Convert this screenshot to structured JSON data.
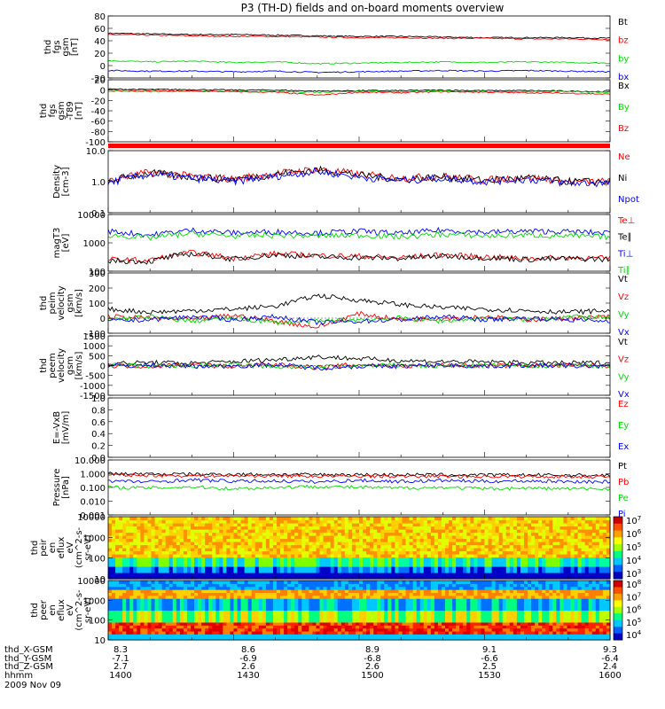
{
  "title": "P3 (TH-D) fields and on-board moments overview",
  "colors": {
    "black": "#000000",
    "red": "#ff0000",
    "green": "#00dd00",
    "blue": "#0000ff"
  },
  "chart_data": [
    {
      "type": "line",
      "id": "fgs",
      "ylabel_lines": [
        "thd",
        "fgs",
        "gsm",
        "[nT]"
      ],
      "ylim": [
        -20,
        80
      ],
      "yticks": [
        "80",
        "60",
        "40",
        "20",
        "0",
        "-20"
      ],
      "series": [
        {
          "name": "Bt",
          "color": "black",
          "values": [
            52,
            51,
            50,
            50,
            49,
            48,
            47,
            47,
            46,
            45,
            45,
            45,
            44
          ]
        },
        {
          "name": "bz",
          "color": "red",
          "values": [
            50,
            49,
            48,
            47,
            47,
            46,
            45,
            45,
            44,
            44,
            43,
            43,
            42
          ]
        },
        {
          "name": "by",
          "color": "green",
          "values": [
            8,
            6,
            7,
            5,
            6,
            3,
            4,
            5,
            6,
            5,
            6,
            5,
            4
          ]
        },
        {
          "name": "bx",
          "color": "blue",
          "values": [
            -8,
            -9,
            -9,
            -10,
            -9,
            -11,
            -10,
            -9,
            -8,
            -9,
            -8,
            -9,
            -10
          ]
        }
      ]
    },
    {
      "type": "line",
      "id": "fgs_t89",
      "ylabel_lines": [
        "thd",
        "fgs",
        "gsm",
        "-T89",
        "[nT]"
      ],
      "ylim": [
        -100,
        20
      ],
      "yticks": [
        "20",
        "0",
        "-20",
        "-40",
        "-60",
        "-80",
        "-100"
      ],
      "series": [
        {
          "name": "Bx",
          "color": "black",
          "values": [
            2,
            1,
            1,
            0,
            0,
            -2,
            -1,
            -1,
            0,
            -1,
            -1,
            -2,
            -3
          ]
        },
        {
          "name": "By",
          "color": "green",
          "values": [
            -2,
            -3,
            -2,
            -3,
            -3,
            -4,
            -2,
            -3,
            -2,
            -3,
            -3,
            -3,
            -4
          ]
        },
        {
          "name": "Bz",
          "color": "red",
          "values": [
            0,
            -1,
            -2,
            -3,
            -4,
            -10,
            -4,
            -5,
            -3,
            -4,
            -5,
            -6,
            -8
          ]
        }
      ]
    },
    {
      "type": "line",
      "id": "density",
      "ylabel_lines": [
        "Density",
        "[cm-3]"
      ],
      "scale": "log",
      "ylim": [
        0.1,
        10
      ],
      "yticks": [
        "10.0",
        "1.0",
        "0.1"
      ],
      "series": [
        {
          "name": "Ne",
          "color": "red",
          "values": [
            1.0,
            2.0,
            1.5,
            1.2,
            1.8,
            2.5,
            1.7,
            1.3,
            1.5,
            1.1,
            1.4,
            1.0,
            1.0
          ]
        },
        {
          "name": "Ni",
          "color": "black",
          "values": [
            1.0,
            1.9,
            1.4,
            1.2,
            1.7,
            2.4,
            1.6,
            1.2,
            1.4,
            1.1,
            1.3,
            1.0,
            1.0
          ]
        },
        {
          "name": "Npot",
          "color": "blue",
          "values": [
            0.9,
            1.7,
            1.3,
            1.0,
            1.5,
            2.1,
            1.4,
            1.1,
            1.3,
            1.0,
            1.2,
            0.9,
            0.9
          ]
        }
      ]
    },
    {
      "type": "line",
      "id": "mag",
      "ylabel_lines": [
        "magT3",
        "[eV]"
      ],
      "scale": "log",
      "ylim": [
        30,
        10000
      ],
      "yticks": [
        "10000",
        "1000",
        "100"
      ],
      "series": [
        {
          "name": "Te⊥",
          "color": "red",
          "values": [
            100,
            90,
            200,
            110,
            180,
            150,
            140,
            120,
            160,
            130,
            110,
            120,
            110
          ]
        },
        {
          "name": "Te∥",
          "color": "black",
          "values": [
            90,
            80,
            180,
            100,
            160,
            130,
            120,
            110,
            140,
            120,
            100,
            110,
            100
          ]
        },
        {
          "name": "Ti⊥",
          "color": "blue",
          "values": [
            1800,
            1200,
            2000,
            1500,
            1700,
            1500,
            1800,
            1400,
            2000,
            1600,
            1800,
            1700,
            1500
          ]
        },
        {
          "name": "Ti∥",
          "color": "green",
          "values": [
            1200,
            900,
            1400,
            1100,
            1200,
            1100,
            1200,
            1000,
            1300,
            1100,
            1200,
            1100,
            1000
          ]
        }
      ]
    },
    {
      "type": "line",
      "id": "peim",
      "ylabel_lines": [
        "thd",
        "peim",
        "velocity",
        "gsm",
        "[km/s]"
      ],
      "ylim": [
        -100,
        300
      ],
      "yticks": [
        "300",
        "200",
        "100",
        "0",
        "-100"
      ],
      "series": [
        {
          "name": "Vt",
          "color": "black",
          "values": [
            60,
            40,
            50,
            60,
            80,
            150,
            120,
            90,
            70,
            60,
            50,
            40,
            50
          ]
        },
        {
          "name": "Vz",
          "color": "red",
          "values": [
            10,
            0,
            -10,
            20,
            -20,
            -60,
            30,
            -10,
            0,
            10,
            -10,
            0,
            10
          ]
        },
        {
          "name": "Vy",
          "color": "green",
          "values": [
            -10,
            10,
            -20,
            0,
            -30,
            -20,
            -10,
            0,
            -20,
            0,
            -10,
            10,
            0
          ]
        },
        {
          "name": "Vx",
          "color": "blue",
          "values": [
            -20,
            -10,
            10,
            -10,
            10,
            -30,
            -20,
            -10,
            10,
            -10,
            0,
            -10,
            -20
          ]
        }
      ]
    },
    {
      "type": "line",
      "id": "peem",
      "ylabel_lines": [
        "thd",
        "peem",
        "velocity",
        "gsm",
        "[km/s]"
      ],
      "ylim": [
        -1500,
        1500
      ],
      "yticks": [
        "1500",
        "1000",
        "500",
        "0",
        "-500",
        "-1000",
        "-1500"
      ],
      "series": [
        {
          "name": "Vt",
          "color": "black",
          "values": [
            100,
            150,
            120,
            200,
            300,
            450,
            350,
            250,
            200,
            180,
            150,
            120,
            150
          ]
        },
        {
          "name": "Vz",
          "color": "red",
          "values": [
            0,
            -30,
            40,
            -50,
            50,
            -100,
            60,
            -40,
            30,
            -20,
            20,
            -10,
            0
          ]
        },
        {
          "name": "Vy",
          "color": "green",
          "values": [
            20,
            -40,
            -20,
            30,
            -60,
            -80,
            -30,
            20,
            -40,
            10,
            -20,
            20,
            -10
          ]
        },
        {
          "name": "Vx",
          "color": "blue",
          "values": [
            -30,
            20,
            -30,
            -20,
            40,
            -120,
            -40,
            -30,
            20,
            -30,
            10,
            -20,
            -30
          ]
        }
      ]
    },
    {
      "type": "line",
      "id": "efield",
      "ylabel_lines": [
        "E=-VxB",
        "[mV/m]"
      ],
      "ylim": [
        0,
        1
      ],
      "yticks": [
        "1.0",
        "0.8",
        "0.6",
        "0.4",
        "0.2",
        "0.0"
      ],
      "series": [
        {
          "name": "Ez",
          "color": "red",
          "values": []
        },
        {
          "name": "Ey",
          "color": "green",
          "values": []
        },
        {
          "name": "Ex",
          "color": "blue",
          "values": []
        }
      ]
    },
    {
      "type": "line",
      "id": "pressure",
      "ylabel_lines": [
        "Pressure",
        "[nPa]"
      ],
      "scale": "log",
      "ylim": [
        0.001,
        10
      ],
      "yticks": [
        "10.000",
        "1.000",
        "0.100",
        "0.010",
        "0.001"
      ],
      "series": [
        {
          "name": "Pt",
          "color": "black",
          "values": [
            1.0,
            0.95,
            0.9,
            0.9,
            0.88,
            0.85,
            0.85,
            0.83,
            0.82,
            0.8,
            0.8,
            0.78,
            0.75
          ]
        },
        {
          "name": "Pb",
          "color": "red",
          "values": [
            0.8,
            0.75,
            0.72,
            0.7,
            0.7,
            0.65,
            0.66,
            0.65,
            0.64,
            0.63,
            0.62,
            0.61,
            0.6
          ]
        },
        {
          "name": "Pe",
          "color": "green",
          "values": [
            0.1,
            0.09,
            0.11,
            0.08,
            0.1,
            0.12,
            0.1,
            0.09,
            0.1,
            0.08,
            0.09,
            0.08,
            0.08
          ]
        },
        {
          "name": "Pi",
          "color": "blue",
          "values": [
            0.3,
            0.25,
            0.35,
            0.28,
            0.3,
            0.25,
            0.33,
            0.27,
            0.32,
            0.28,
            0.3,
            0.27,
            0.25
          ]
        }
      ]
    },
    {
      "type": "heatmap",
      "id": "peir",
      "ylabel_lines": [
        "thd",
        "peir",
        "en",
        "eflux",
        "eV",
        "(cm^2-s-",
        "sr-eV)"
      ],
      "scale": "log",
      "ylim": [
        10,
        20000
      ],
      "yticks": [
        "10000",
        "1000",
        "100",
        "10"
      ],
      "colorbar_ticks": [
        "10^7",
        "10^6",
        "10^5",
        "10^4",
        "10^3"
      ]
    },
    {
      "type": "heatmap",
      "id": "peer",
      "ylabel_lines": [
        "thd",
        "peer",
        "en",
        "eflux",
        "eV",
        "(cm^2-s-",
        "sr-eV)"
      ],
      "scale": "log",
      "ylim": [
        10,
        20000
      ],
      "yticks": [
        "10000",
        "1000",
        "100",
        "10"
      ],
      "colorbar_ticks": [
        "10^8",
        "10^7",
        "10^6",
        "10^5",
        "10^4"
      ]
    }
  ],
  "ephemeris": {
    "labels": [
      "thd_X-GSM",
      "thd_Y-GSM",
      "thd_Z-GSM",
      "hhmm",
      "2009 Nov 09"
    ],
    "columns": [
      {
        "x": "8.3",
        "y": "-7.1",
        "z": "2.7",
        "t": "1400"
      },
      {
        "x": "8.6",
        "y": "-6.9",
        "z": "2.6",
        "t": "1430"
      },
      {
        "x": "8.9",
        "y": "-6.8",
        "z": "2.6",
        "t": "1500"
      },
      {
        "x": "9.1",
        "y": "-6.6",
        "z": "2.5",
        "t": "1530"
      },
      {
        "x": "9.3",
        "y": "-6.4",
        "z": "2.4",
        "t": "1600"
      }
    ]
  }
}
